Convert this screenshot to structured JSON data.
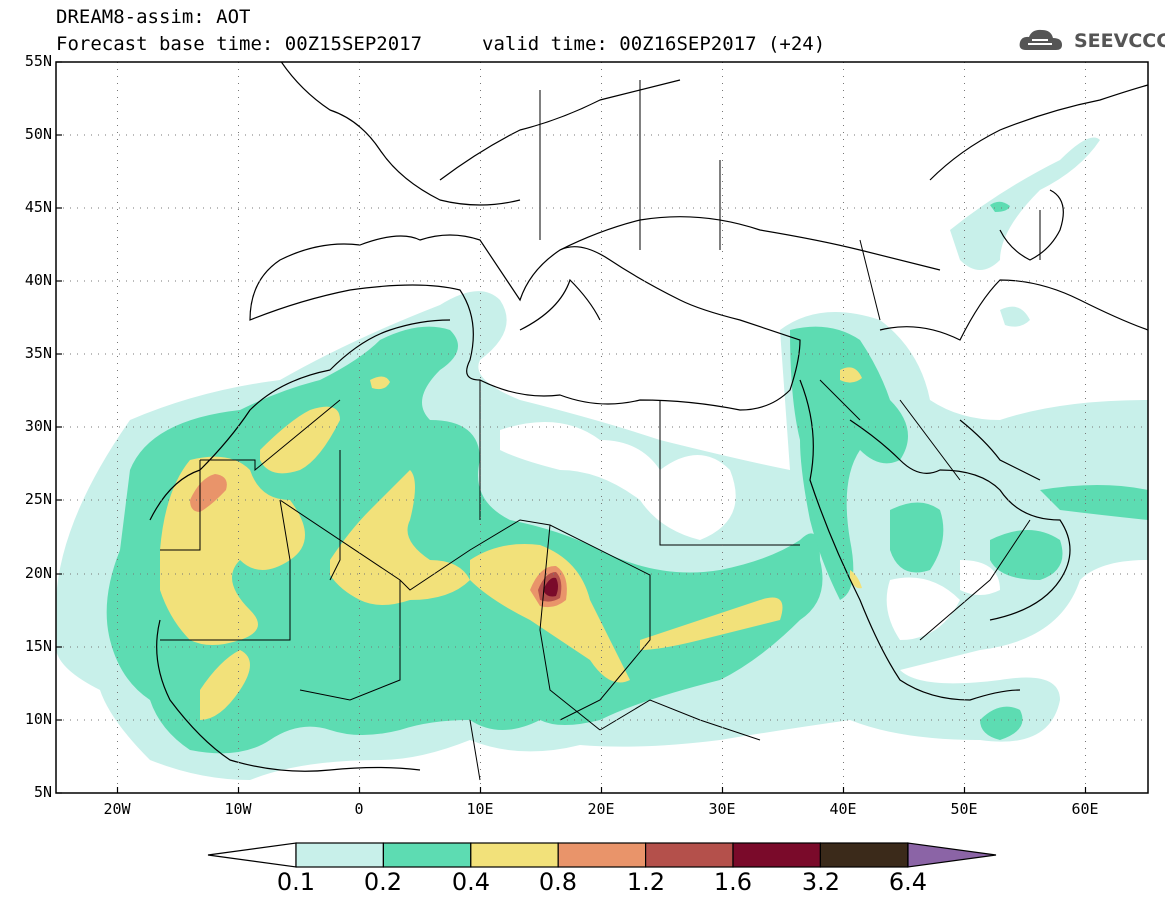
{
  "header": {
    "title_line1": "DREAM8-assim: AOT",
    "title_line2": "Forecast base time: 00Z15SEP2017",
    "valid_time": "valid time: 00Z16SEP2017 (+24)",
    "logo_text": "SEEVCCC",
    "logo_icon": "cloud-icon"
  },
  "map": {
    "lat_labels": [
      "55N",
      "50N",
      "45N",
      "40N",
      "35N",
      "30N",
      "25N",
      "20N",
      "15N",
      "10N",
      "5N"
    ],
    "lon_labels": [
      "20W",
      "10W",
      "0",
      "10E",
      "20E",
      "30E",
      "40E",
      "50E",
      "60E"
    ]
  },
  "colorbar": {
    "labels": [
      "0.1",
      "0.2",
      "0.4",
      "0.8",
      "1.2",
      "1.6",
      "3.2",
      "6.4"
    ],
    "colors": [
      "#c8f0ea",
      "#5ddcb2",
      "#f2e17a",
      "#e9946a",
      "#b4504b",
      "#7a0a2a",
      "#3b2a1a",
      "#8b64a6"
    ]
  },
  "palette": {
    "level_01": "#c8f0ea",
    "level_02": "#5ddcb2",
    "level_04": "#f2e17a",
    "level_08": "#e9946a",
    "level_12": "#b4504b",
    "level_16": "#7a0a2a",
    "border": "#000000"
  }
}
